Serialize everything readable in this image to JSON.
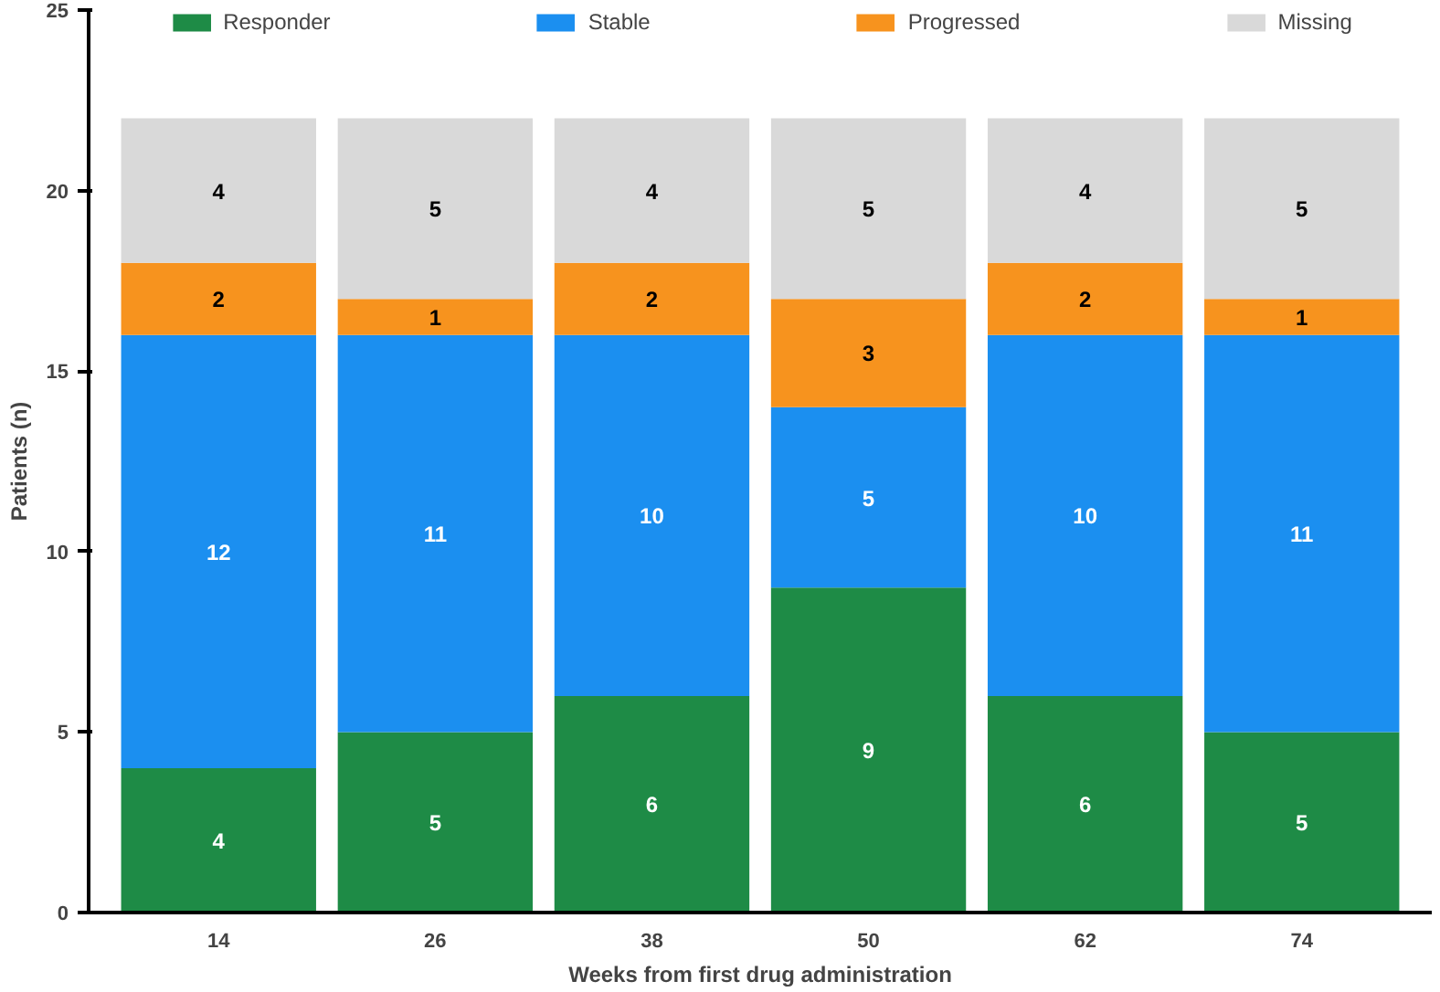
{
  "chart_data": {
    "type": "bar",
    "stacked": true,
    "data_labels": true,
    "categories": [
      "14",
      "26",
      "38",
      "50",
      "62",
      "74"
    ],
    "series": [
      {
        "name": "Responder",
        "color": "#1e8b46",
        "values": [
          4,
          5,
          6,
          9,
          6,
          5
        ]
      },
      {
        "name": "Stable",
        "color": "#1b8ff0",
        "values": [
          12,
          11,
          10,
          5,
          10,
          11
        ]
      },
      {
        "name": "Progressed",
        "color": "#f7931e",
        "values": [
          2,
          1,
          2,
          3,
          2,
          1
        ]
      },
      {
        "name": "Missing",
        "color": "#d9d9d9",
        "values": [
          4,
          5,
          4,
          5,
          4,
          5
        ]
      }
    ],
    "xlabel": "Weeks from first drug administration",
    "ylabel": "Patients (n)",
    "ylim": [
      0,
      25
    ],
    "yticks": [
      0,
      5,
      10,
      15,
      20,
      25
    ],
    "grid": false,
    "legend": "top"
  }
}
